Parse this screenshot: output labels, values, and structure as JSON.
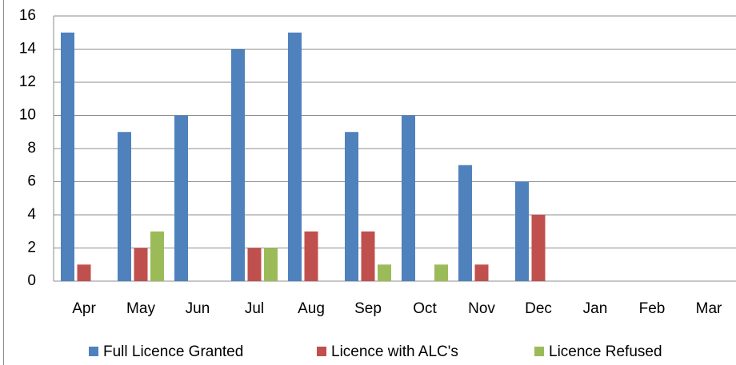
{
  "chart_data": {
    "type": "bar",
    "categories": [
      "Apr",
      "May",
      "Jun",
      "Jul",
      "Aug",
      "Sep",
      "Oct",
      "Nov",
      "Dec",
      "Jan",
      "Feb",
      "Mar"
    ],
    "series": [
      {
        "name": "Full Licence Granted",
        "color": "#4f81bd",
        "values": [
          15,
          9,
          10,
          14,
          15,
          9,
          10,
          7,
          6,
          0,
          0,
          0
        ]
      },
      {
        "name": "Licence with ALC's",
        "color": "#c0504d",
        "values": [
          1,
          2,
          0,
          2,
          3,
          3,
          0,
          1,
          4,
          0,
          0,
          0
        ]
      },
      {
        "name": "Licence Refused",
        "color": "#9bbb59",
        "values": [
          0,
          3,
          0,
          2,
          0,
          1,
          1,
          0,
          0,
          0,
          0,
          0
        ]
      }
    ],
    "ylim": [
      0,
      16
    ],
    "yticks": [
      0,
      2,
      4,
      6,
      8,
      10,
      12,
      14,
      16
    ],
    "grid": true,
    "legend": "bottom"
  }
}
